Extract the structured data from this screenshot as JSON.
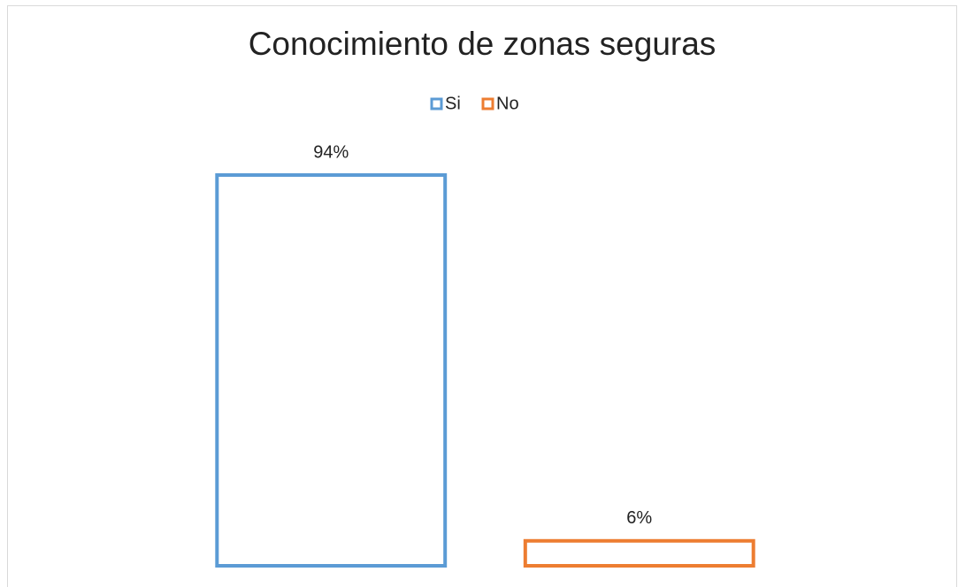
{
  "chart_data": {
    "type": "bar",
    "title": "Conocimiento de zonas seguras",
    "categories": [
      null
    ],
    "series": [
      {
        "name": "Si",
        "color": "#5b9bd5",
        "values": [
          94
        ],
        "value_labels": [
          "94%"
        ]
      },
      {
        "name": "No",
        "color": "#ed7d31",
        "values": [
          6
        ],
        "value_labels": [
          "6%"
        ]
      }
    ],
    "legend": "top"
  }
}
